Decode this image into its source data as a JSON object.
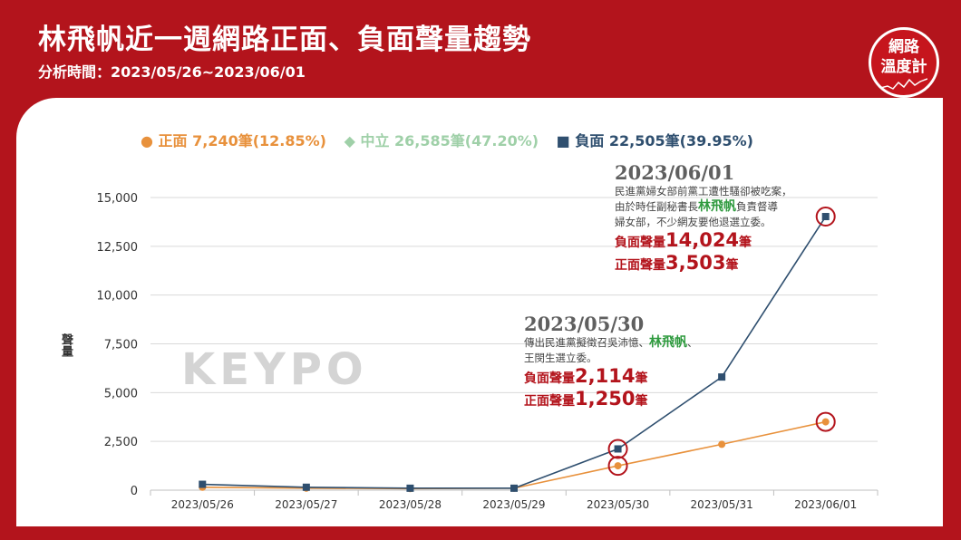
{
  "header": {
    "title": "林飛帆近一週網路正面、負面聲量趨勢",
    "subtitle": "分析時間：2023/05/26~2023/06/01",
    "logo_line1": "網路",
    "logo_line2": "溫度計"
  },
  "watermark": "KEYPO",
  "legend": [
    {
      "label": "正面 7,240筆(12.85%)",
      "color": "#e8913c",
      "marker": "●"
    },
    {
      "label": "中立 26,585筆(47.20%)",
      "color": "#9fd0a8",
      "marker": "◆"
    },
    {
      "label": "負面 22,505筆(39.95%)",
      "color": "#2f4f6f",
      "marker": "■"
    }
  ],
  "annotations": [
    {
      "date": "2023/06/01",
      "desc1": "民進黨婦女部前黨工遭性騷卻被吃案，",
      "desc2_pre": "由於時任副秘書長",
      "desc2_hl": "林飛帆",
      "desc2_post": "負責督導",
      "desc3": "婦女部，不少網友要他退選立委。",
      "neg_label": "負面聲量",
      "neg_value": "14,024",
      "pos_label": "正面聲量",
      "pos_value": "3,503",
      "unit": "筆"
    },
    {
      "date": "2023/05/30",
      "desc1_pre": "傳出民進黨擬徵召吳沛憶、",
      "desc1_hl": "林飛帆",
      "desc1_post": "、",
      "desc2": "王閔生選立委。",
      "neg_label": "負面聲量",
      "neg_value": "2,114",
      "pos_label": "正面聲量",
      "pos_value": "1,250",
      "unit": "筆"
    }
  ],
  "chart_data": {
    "type": "line",
    "title": "林飛帆近一週網路正面、負面聲量趨勢",
    "subtitle": "分析時間：2023/05/26~2023/06/01",
    "xlabel": "",
    "ylabel": "聲量",
    "ylim": [
      0,
      15000
    ],
    "yticks": [
      0,
      2500,
      5000,
      7500,
      10000,
      12500,
      15000
    ],
    "ytick_labels": [
      "0",
      "2,500",
      "5,000",
      "7,500",
      "10,000",
      "12,500",
      "15,000"
    ],
    "categories": [
      "2023/05/26",
      "2023/05/27",
      "2023/05/28",
      "2023/05/29",
      "2023/05/30",
      "2023/05/31",
      "2023/06/01"
    ],
    "grid": true,
    "legend_position": "top",
    "series": [
      {
        "name": "正面",
        "color": "#e8913c",
        "marker": "circle",
        "values": [
          150,
          100,
          80,
          100,
          1250,
          2350,
          3503
        ]
      },
      {
        "name": "負面",
        "color": "#2f4f6f",
        "marker": "square",
        "values": [
          300,
          150,
          100,
          100,
          2114,
          5800,
          14024
        ]
      }
    ],
    "highlight_color": "#b3141c"
  }
}
